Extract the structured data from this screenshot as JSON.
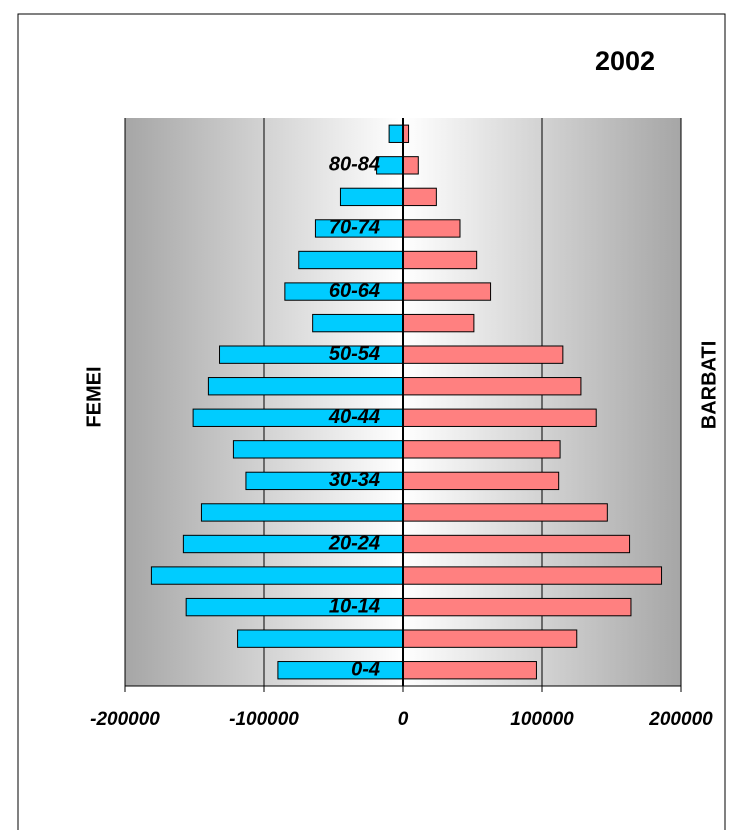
{
  "chart_data": {
    "type": "pyramid",
    "title": "2002",
    "categories": [
      "0-4",
      null,
      "10-14",
      null,
      "20-24",
      null,
      "30-34",
      null,
      "40-44",
      null,
      "50-54",
      null,
      "60-64",
      null,
      "70-74",
      null,
      "80-84",
      null
    ],
    "series": [
      {
        "name": "FEMEI",
        "color": "#00ccff",
        "values": [
          -90000,
          -119000,
          -156000,
          -181000,
          -158000,
          -145000,
          -113000,
          -122000,
          -151000,
          -140000,
          -132000,
          -65000,
          -85000,
          -75000,
          -63000,
          -45000,
          -19000,
          -10000
        ]
      },
      {
        "name": "BARBATI",
        "color": "#ff8080",
        "values": [
          96000,
          125000,
          164000,
          186000,
          163000,
          147000,
          112000,
          113000,
          139000,
          128000,
          115000,
          51000,
          63000,
          53000,
          41000,
          24000,
          11000,
          4000
        ]
      }
    ],
    "xlim": [
      -200000,
      200000
    ],
    "xticks": [
      -200000,
      -100000,
      0,
      100000,
      200000
    ],
    "grid": true
  }
}
